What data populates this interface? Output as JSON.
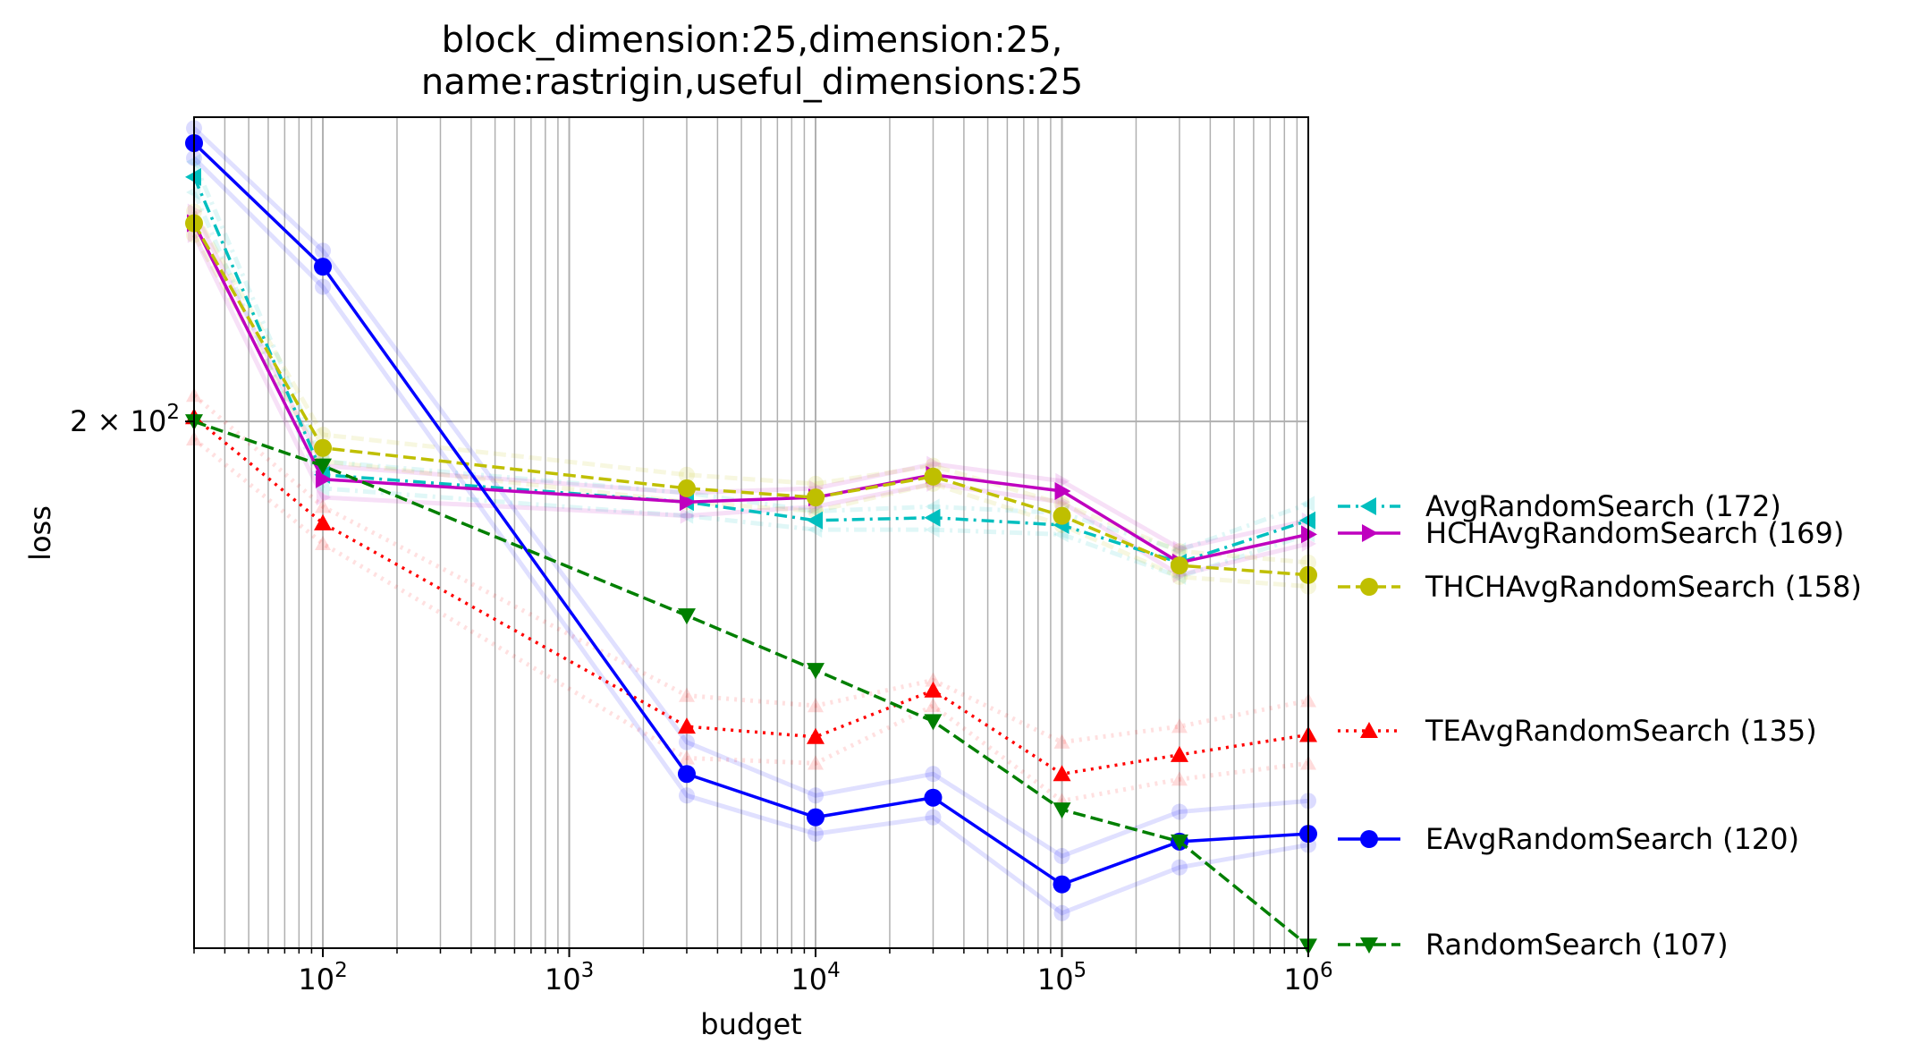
{
  "chart_data": {
    "type": "line",
    "title_lines": [
      "block_dimension:25,dimension:25,",
      "name:rastrigin,useful_dimensions:25"
    ],
    "xlabel": "budget",
    "ylabel": "loss",
    "xscale": "log",
    "yscale": "log",
    "xlim": [
      30,
      1000000
    ],
    "ylim": [
      148,
      238
    ],
    "grid": true,
    "legend_position": "outside-right",
    "x_tick_labels": [
      {
        "value": 100,
        "base": "10",
        "exp": "2"
      },
      {
        "value": 1000,
        "base": "10",
        "exp": "3"
      },
      {
        "value": 10000,
        "base": "10",
        "exp": "4"
      },
      {
        "value": 100000,
        "base": "10",
        "exp": "5"
      },
      {
        "value": 1000000,
        "base": "10",
        "exp": "6"
      }
    ],
    "y_tick_labels": [
      {
        "value": 200,
        "coef": "2",
        "base": "10",
        "exp": "2"
      }
    ],
    "x": [
      30,
      100,
      3000,
      10000,
      30000,
      100000,
      300000,
      1000000
    ],
    "series": [
      {
        "name": "AvgRandomSearch (172)",
        "color": "#00bfbf",
        "marker": "triangle-left",
        "dash": "dashdot",
        "values": [
          230,
          194,
          191,
          189,
          189.3,
          188.5,
          184.5,
          189
        ]
      },
      {
        "name": "HCHAvgRandomSearch (169)",
        "color": "#bf00bf",
        "marker": "triangle-right",
        "dash": "solid",
        "values": [
          224,
          193.5,
          191,
          191.5,
          194,
          192.2,
          184.5,
          187.5
        ]
      },
      {
        "name": "THCHAvgRandomSearch (158)",
        "color": "#bfbf00",
        "marker": "circle",
        "dash": "dashed",
        "values": [
          224,
          197,
          192.5,
          191.5,
          193.8,
          189.5,
          184.2,
          183.2
        ]
      },
      {
        "name": "TEAvgRandomSearch (135)",
        "color": "#ff0000",
        "marker": "triangle-up",
        "dash": "dotted",
        "values": [
          200.5,
          188.7,
          168,
          167,
          171.5,
          163.5,
          165.3,
          167.2
        ]
      },
      {
        "name": "EAvgRandomSearch (120)",
        "color": "#0000ff",
        "marker": "circle",
        "dash": "solid",
        "values": [
          234.5,
          218.5,
          163.5,
          159.5,
          161.3,
          153.5,
          157.3,
          158
        ]
      },
      {
        "name": "RandomSearch (107)",
        "color": "#007f00",
        "marker": "triangle-down",
        "dash": "dashed",
        "values": [
          200,
          195,
          179,
          173.5,
          168.5,
          160.2,
          157.3,
          148.2
        ]
      }
    ],
    "faint_bands": [
      {
        "series": 0,
        "values": [
          [
            232,
            228
          ],
          [
            195.5,
            192.5
          ],
          [
            192,
            189.5
          ],
          [
            190,
            188
          ],
          [
            190.5,
            188
          ],
          [
            189.8,
            187.5
          ],
          [
            185.8,
            183
          ],
          [
            190.8,
            187.5
          ]
        ]
      },
      {
        "series": 1,
        "values": [
          [
            225.5,
            222.5
          ],
          [
            195,
            191.5
          ],
          [
            192,
            189.5
          ],
          [
            192.5,
            190.5
          ],
          [
            195.2,
            193
          ],
          [
            193.3,
            191
          ],
          [
            186,
            183.2
          ],
          [
            189,
            186.5
          ]
        ]
      },
      {
        "series": 2,
        "values": [
          [
            225.5,
            222.5
          ],
          [
            198.5,
            195.5
          ],
          [
            194,
            191
          ],
          [
            193,
            190
          ],
          [
            195,
            193
          ],
          [
            190.8,
            188.5
          ],
          [
            185.7,
            183
          ],
          [
            184.5,
            182
          ]
        ]
      },
      {
        "series": 3,
        "values": [
          [
            203,
            198
          ],
          [
            190.5,
            186.5
          ],
          [
            171,
            165
          ],
          [
            170,
            164.5
          ],
          [
            172.5,
            170
          ],
          [
            166.5,
            161
          ],
          [
            168,
            163
          ],
          [
            170.5,
            164.5
          ]
        ]
      },
      {
        "series": 4,
        "values": [
          [
            236.5,
            232.5
          ],
          [
            220.5,
            216
          ],
          [
            166.5,
            161.5
          ],
          [
            161.5,
            158
          ],
          [
            163.5,
            159.5
          ],
          [
            156,
            151
          ],
          [
            160,
            155
          ],
          [
            161,
            157
          ]
        ]
      }
    ]
  }
}
